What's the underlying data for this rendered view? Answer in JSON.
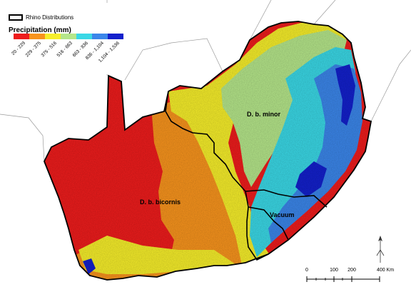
{
  "legend": {
    "boundary_label": "Rhino Distributions",
    "precipitation_title": "Precipitation (mm)",
    "classes": [
      {
        "label": "20 - 229",
        "color": "#ee1c1c"
      },
      {
        "label": "229 - 375",
        "color": "#f8941d"
      },
      {
        "label": "375 - 516",
        "color": "#f6ee2a"
      },
      {
        "label": "516 - 663",
        "color": "#b5e68a"
      },
      {
        "label": "663 - 836",
        "color": "#3ad8e6"
      },
      {
        "label": "836 - 1,104",
        "color": "#3b86ea"
      },
      {
        "label": "1,104 - 1,536",
        "color": "#1320cc"
      }
    ]
  },
  "regions": {
    "west": "D. b. bicornis",
    "east": "D. b. minor",
    "southeast": "Vacuum"
  },
  "scale": {
    "ticks": [
      "0",
      "100",
      "200",
      "400 Km"
    ]
  },
  "colors": {
    "background": "#ffffff",
    "outline": "#000000",
    "country_border": "#9a9a9a"
  }
}
